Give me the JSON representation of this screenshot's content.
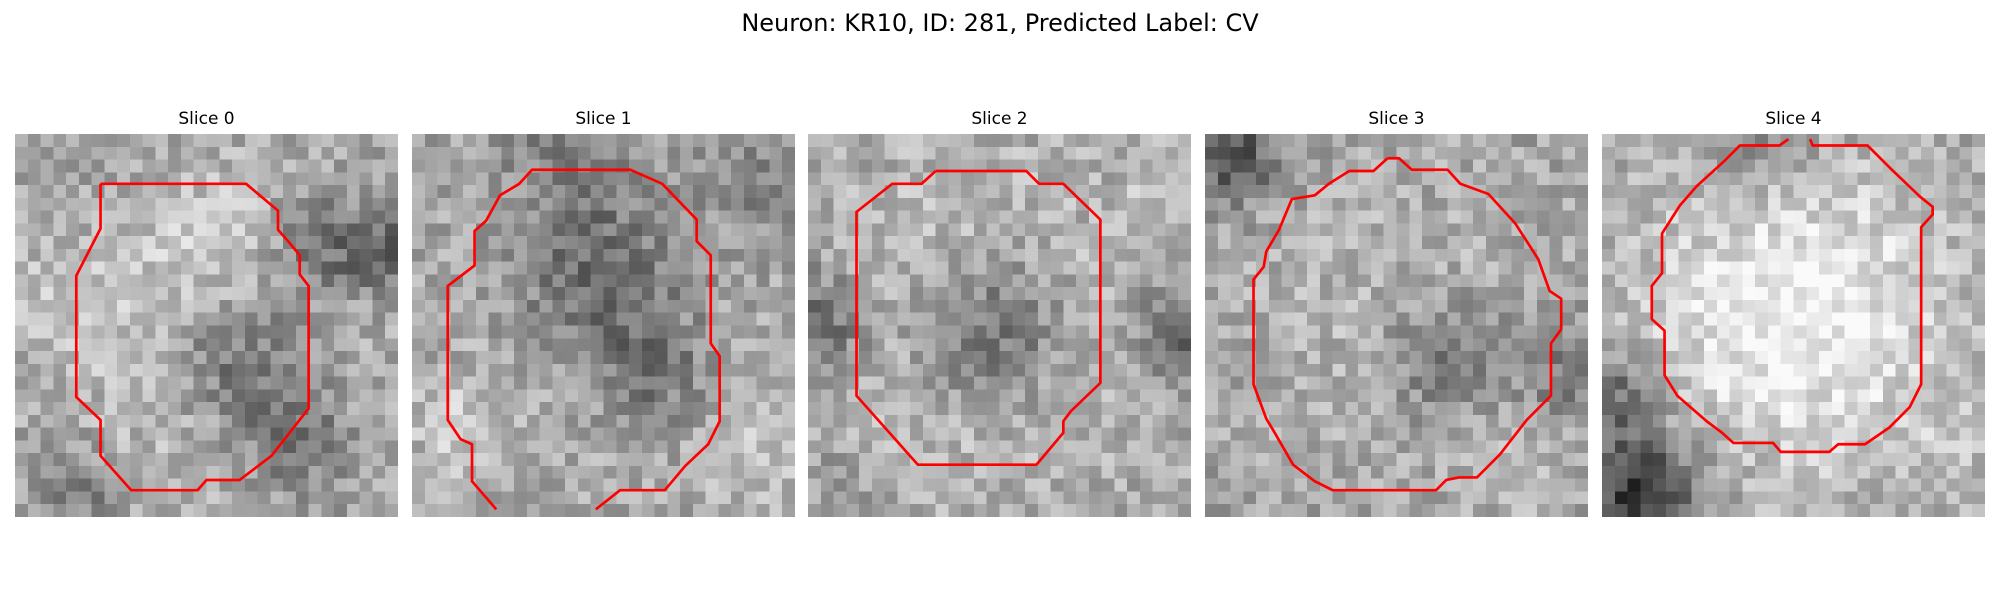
{
  "figure": {
    "title": "Neuron: KR10, ID: 281, Predicted Label: CV",
    "contour_color": "#ff0000"
  },
  "panels": [
    {
      "title": "Slice 0",
      "image_description": "grayscale 30x30 microscopy patch, bright ring around a darker central blob (dark spot lower right of center), dark regions at top-right and right edge",
      "contour_description": "closed red octagonal contour around the cell body"
    },
    {
      "title": "Slice 1",
      "image_description": "grayscale 30x30 microscopy patch, mottled texture with dark center, darker outer band",
      "contour_description": "red contour open at the bottom, two strokes leaving the image at the lower edge"
    },
    {
      "title": "Slice 2",
      "image_description": "grayscale 30x30 microscopy patch, dark central blob surrounded by light gray ring, dark left and right edges",
      "contour_description": "closed red octagonal contour"
    },
    {
      "title": "Slice 3",
      "image_description": "grayscale 30x30 microscopy patch, dark ring boundary, small very dark spot right of center",
      "contour_description": "closed red jagged circular contour"
    },
    {
      "title": "Slice 4",
      "image_description": "grayscale 30x30 microscopy patch, bright round cell body with darker rim, very dark region in bottom-left corner",
      "contour_description": "red contour with a small notch gap at the top"
    }
  ]
}
